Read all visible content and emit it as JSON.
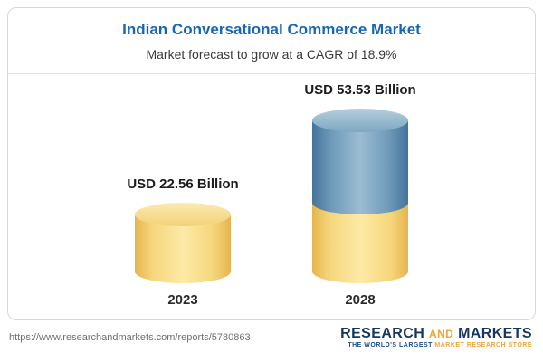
{
  "title": "Indian Conversational Commerce Market",
  "subtitle": "Market forecast to grow at a CAGR of 18.9%",
  "chart_data": {
    "type": "bar",
    "categories": [
      "2023",
      "2028"
    ],
    "values": [
      22.56,
      53.53
    ],
    "value_labels": [
      "USD 22.56 Billion",
      "USD 53.53 Billion"
    ],
    "title": "Indian Conversational Commerce Market",
    "subtitle": "Market forecast to grow at a CAGR of 18.9%",
    "xlabel": "",
    "ylabel": "",
    "ylim": [
      0,
      55
    ],
    "grid": false,
    "legend": false,
    "style_note": "3D cylinder bars; 2028 bar stacked: yellow base equal to 2023 value, blue growth portion on top",
    "colors": {
      "yellow": "#f2cc66",
      "blue": "#5c8cad",
      "title_blue": "#1766b5"
    }
  },
  "footer": {
    "url": "https://www.researchandmarkets.com/reports/5780863",
    "logo": {
      "word1": "RESEARCH",
      "word2": "AND",
      "word3": "MARKETS",
      "tagline_prefix": "THE WORLD'S LARGEST",
      "tagline_suffix": "MARKET RESEARCH STORE"
    },
    "colors": {
      "navy": "#16365f",
      "gold": "#eba636"
    }
  }
}
